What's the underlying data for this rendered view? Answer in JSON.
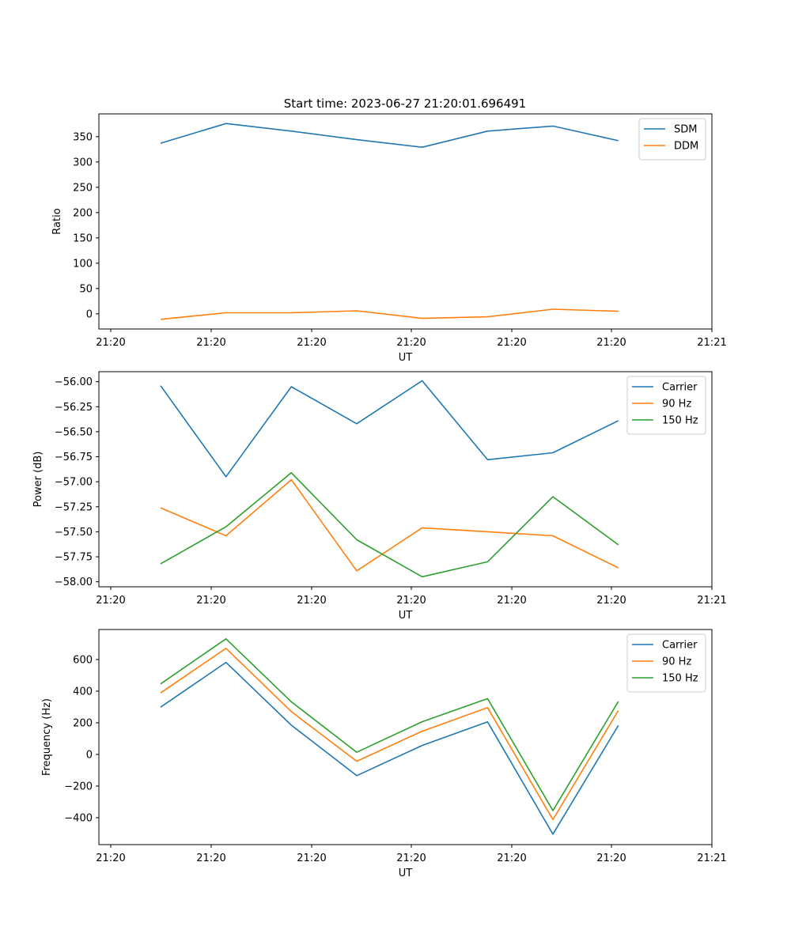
{
  "figure": {
    "title": "Start time: 2023-06-27 21:20:01.696491"
  },
  "chart_data": [
    {
      "type": "line",
      "xlabel": "UT",
      "ylabel": "Ratio",
      "x_ticks": [
        "21:20",
        "21:20",
        "21:20",
        "21:20",
        "21:20",
        "21:20",
        "21:21"
      ],
      "x_points": 8,
      "ylim": [
        -30,
        395
      ],
      "y_ticks": [
        0,
        50,
        100,
        150,
        200,
        250,
        300,
        350
      ],
      "y_tick_labels": [
        "0",
        "50",
        "100",
        "150",
        "200",
        "250",
        "300",
        "350"
      ],
      "legend_position": "top-right",
      "series": [
        {
          "name": "SDM",
          "color": "#1f77b4",
          "values": [
            337,
            376,
            361,
            344,
            329,
            361,
            371,
            342
          ]
        },
        {
          "name": "DDM",
          "color": "#ff7f0e",
          "values": [
            -11,
            2,
            2,
            6,
            -9,
            -6,
            9,
            5
          ]
        }
      ]
    },
    {
      "type": "line",
      "xlabel": "UT",
      "ylabel": "Power (dB)",
      "x_ticks": [
        "21:20",
        "21:20",
        "21:20",
        "21:20",
        "21:20",
        "21:20",
        "21:21"
      ],
      "x_points": 8,
      "ylim": [
        -58.05,
        -55.9
      ],
      "y_ticks": [
        -58.0,
        -57.75,
        -57.5,
        -57.25,
        -57.0,
        -56.75,
        -56.5,
        -56.25,
        -56.0
      ],
      "y_tick_labels": [
        "−58.00",
        "−57.75",
        "−57.50",
        "−57.25",
        "−57.00",
        "−56.75",
        "−56.50",
        "−56.25",
        "−56.00"
      ],
      "legend_position": "top-right",
      "series": [
        {
          "name": "Carrier",
          "color": "#1f77b4",
          "values": [
            -56.04,
            -56.95,
            -56.05,
            -56.42,
            -55.99,
            -56.78,
            -56.71,
            -56.39
          ]
        },
        {
          "name": "90 Hz",
          "color": "#ff7f0e",
          "values": [
            -57.26,
            -57.54,
            -56.98,
            -57.89,
            -57.46,
            -57.5,
            -57.54,
            -57.86
          ]
        },
        {
          "name": "150 Hz",
          "color": "#2ca02c",
          "values": [
            -57.82,
            -57.45,
            -56.91,
            -57.58,
            -57.95,
            -57.8,
            -57.15,
            -57.63
          ]
        }
      ]
    },
    {
      "type": "line",
      "xlabel": "UT",
      "ylabel": "Frequency (Hz)",
      "x_ticks": [
        "21:20",
        "21:20",
        "21:20",
        "21:20",
        "21:20",
        "21:20",
        "21:21"
      ],
      "x_points": 8,
      "ylim": [
        -570,
        790
      ],
      "y_ticks": [
        -400,
        -200,
        0,
        200,
        400,
        600
      ],
      "y_tick_labels": [
        "−400",
        "−200",
        "0",
        "200",
        "400",
        "600"
      ],
      "legend_position": "top-right",
      "series": [
        {
          "name": "Carrier",
          "color": "#1f77b4",
          "values": [
            299,
            582,
            185,
            -134,
            57,
            206,
            -504,
            183
          ]
        },
        {
          "name": "90 Hz",
          "color": "#ff7f0e",
          "values": [
            389,
            671,
            271,
            -43,
            147,
            296,
            -412,
            278
          ]
        },
        {
          "name": "150 Hz",
          "color": "#2ca02c",
          "values": [
            446,
            731,
            333,
            14,
            207,
            353,
            -355,
            335
          ]
        }
      ]
    }
  ]
}
